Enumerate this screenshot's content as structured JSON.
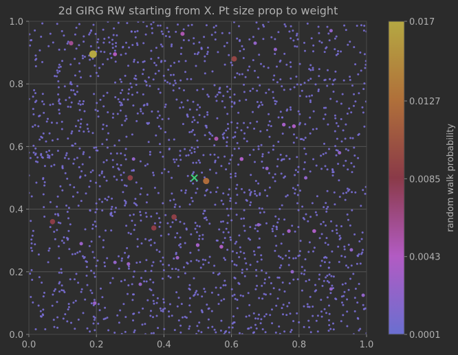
{
  "chart_data": {
    "type": "scatter",
    "title": "2d GIRG RW starting from X. Pt size prop to weight",
    "xlabel": "",
    "ylabel": "",
    "xlim": [
      0.0,
      1.0
    ],
    "ylim": [
      0.0,
      1.0
    ],
    "x_ticks": [
      "0.0",
      "0.2",
      "0.4",
      "0.6",
      "0.8",
      "1.0"
    ],
    "y_ticks": [
      "0.0",
      "0.2",
      "0.4",
      "0.6",
      "0.8",
      "1.0"
    ],
    "grid": true,
    "start_marker": {
      "label": "X",
      "x": 0.49,
      "y": 0.5,
      "color": "#3fd07a"
    },
    "colorbar": {
      "label": "random walk probability",
      "ticks": [
        "0.0001",
        "0.0043",
        "0.0085",
        "0.0127",
        "0.017"
      ],
      "min": 0.0001,
      "max": 0.017,
      "colors": [
        "#6a6fd0",
        "#b25bc3",
        "#8a3a48",
        "#b0703a",
        "#b5a842"
      ]
    },
    "background_points": {
      "count": 1800,
      "color": "#7a6fd6",
      "distribution": "uniform on [0,1]x[0,1]"
    },
    "highlighted_points": [
      {
        "x": 0.19,
        "y": 0.895,
        "p": 0.017
      },
      {
        "x": 0.525,
        "y": 0.49,
        "p": 0.0125
      },
      {
        "x": 0.608,
        "y": 0.88,
        "p": 0.0095
      },
      {
        "x": 0.3,
        "y": 0.5,
        "p": 0.009
      },
      {
        "x": 0.43,
        "y": 0.375,
        "p": 0.009
      },
      {
        "x": 0.37,
        "y": 0.34,
        "p": 0.0088
      },
      {
        "x": 0.07,
        "y": 0.36,
        "p": 0.0088
      },
      {
        "x": 0.125,
        "y": 0.93,
        "p": 0.006
      },
      {
        "x": 0.455,
        "y": 0.96,
        "p": 0.005
      },
      {
        "x": 0.255,
        "y": 0.895,
        "p": 0.0045
      },
      {
        "x": 0.555,
        "y": 0.625,
        "p": 0.005
      },
      {
        "x": 0.63,
        "y": 0.56,
        "p": 0.004
      },
      {
        "x": 0.785,
        "y": 0.665,
        "p": 0.004
      },
      {
        "x": 0.755,
        "y": 0.67,
        "p": 0.0035
      },
      {
        "x": 0.57,
        "y": 0.28,
        "p": 0.004
      },
      {
        "x": 0.5,
        "y": 0.285,
        "p": 0.0035
      },
      {
        "x": 0.77,
        "y": 0.33,
        "p": 0.0035
      },
      {
        "x": 0.845,
        "y": 0.33,
        "p": 0.004
      },
      {
        "x": 0.155,
        "y": 0.29,
        "p": 0.003
      },
      {
        "x": 0.295,
        "y": 0.225,
        "p": 0.003
      },
      {
        "x": 0.195,
        "y": 0.1,
        "p": 0.003
      },
      {
        "x": 0.33,
        "y": 0.16,
        "p": 0.0025
      },
      {
        "x": 0.44,
        "y": 0.245,
        "p": 0.003
      },
      {
        "x": 0.99,
        "y": 0.125,
        "p": 0.0025
      },
      {
        "x": 0.92,
        "y": 0.58,
        "p": 0.0025
      },
      {
        "x": 0.705,
        "y": 0.53,
        "p": 0.0025
      },
      {
        "x": 0.82,
        "y": 0.5,
        "p": 0.0025
      },
      {
        "x": 0.68,
        "y": 0.35,
        "p": 0.0025
      },
      {
        "x": 0.955,
        "y": 0.27,
        "p": 0.0025
      },
      {
        "x": 0.895,
        "y": 0.145,
        "p": 0.0025
      },
      {
        "x": 0.255,
        "y": 0.23,
        "p": 0.0025
      },
      {
        "x": 0.31,
        "y": 0.56,
        "p": 0.0025
      },
      {
        "x": 0.67,
        "y": 0.93,
        "p": 0.0025
      },
      {
        "x": 0.78,
        "y": 0.2,
        "p": 0.0025
      },
      {
        "x": 0.73,
        "y": 0.91,
        "p": 0.0025
      },
      {
        "x": 0.895,
        "y": 0.97,
        "p": 0.0025
      }
    ]
  }
}
